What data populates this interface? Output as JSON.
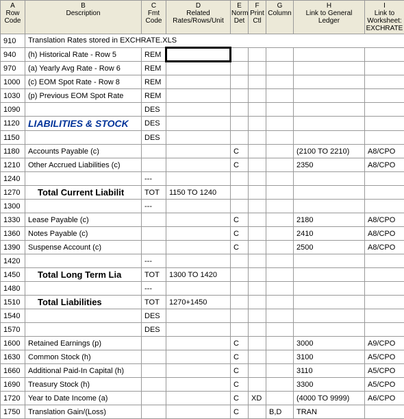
{
  "columns": {
    "a": "A\nRow Code",
    "b": "B\nDescription",
    "c": "C\nFmt Code",
    "d": "D\nRelated Rates/Rows/Unit",
    "e": "E\nNorm Det",
    "f": "F\nPrint Ctl",
    "g": "G\nColumn",
    "h": "H\nLink to General Ledger",
    "i": "I\nLink to Worksheet: EXCHRATE"
  },
  "rows": [
    {
      "code": "910",
      "desc": "Translation Rates stored in EXCHRATE.XLS",
      "descSpan": true
    },
    {
      "code": "940",
      "desc": "(h) Historical Rate - Row 5",
      "fmt": "REM",
      "selectD": true
    },
    {
      "code": "970",
      "desc": "(a)  Yearly Avg Rate - Row 6",
      "fmt": "REM"
    },
    {
      "code": "1000",
      "desc": "(c)  EOM Spot Rate - Row 8",
      "fmt": "REM"
    },
    {
      "code": "1030",
      "desc": "(p)  Previous EOM Spot Rate",
      "fmt": "REM"
    },
    {
      "code": "1090",
      "desc": "",
      "fmt": "DES"
    },
    {
      "code": "1120",
      "desc": "LIABILITIES & STOCK",
      "fmt": "DES",
      "style": "section-header"
    },
    {
      "code": "1150",
      "desc": "",
      "fmt": "DES"
    },
    {
      "code": "1180",
      "desc": "Accounts Payable (c)",
      "fmt": "",
      "e": "C",
      "h": "(2100 TO 2210)",
      "i": "A8/CPO"
    },
    {
      "code": "1210",
      "desc": "Other Accrued Liabilities (c)",
      "fmt": "",
      "e": "C",
      "h": "2350",
      "i": "A8/CPO"
    },
    {
      "code": "1240",
      "desc": "",
      "fmt": "---"
    },
    {
      "code": "1270",
      "desc": "Total Current Liabilit",
      "fmt": "TOT",
      "d": "1150 TO 1240",
      "style": "total-row"
    },
    {
      "code": "1300",
      "desc": "",
      "fmt": "---"
    },
    {
      "code": "1330",
      "desc": "Lease Payable (c)",
      "fmt": "",
      "e": "C",
      "h": "2180",
      "i": "A8/CPO"
    },
    {
      "code": "1360",
      "desc": "Notes Payable (c)",
      "fmt": "",
      "e": "C",
      "h": "2410",
      "i": "A8/CPO"
    },
    {
      "code": "1390",
      "desc": "Suspense Account (c)",
      "fmt": "",
      "e": "C",
      "h": "2500",
      "i": "A8/CPO"
    },
    {
      "code": "1420",
      "desc": "",
      "fmt": "---"
    },
    {
      "code": "1450",
      "desc": "Total Long Term Lia",
      "fmt": "TOT",
      "d": "1300 TO 1420",
      "style": "total-row"
    },
    {
      "code": "1480",
      "desc": "",
      "fmt": "---"
    },
    {
      "code": "1510",
      "desc": "Total Liabilities",
      "fmt": "TOT",
      "d": "1270+1450",
      "style": "total-row"
    },
    {
      "code": "1540",
      "desc": "",
      "fmt": "DES"
    },
    {
      "code": "1570",
      "desc": "",
      "fmt": "DES"
    },
    {
      "code": "1600",
      "desc": "Retained Earnings (p)",
      "fmt": "",
      "e": "C",
      "h": "3000",
      "i": "A9/CPO"
    },
    {
      "code": "1630",
      "desc": "Common Stock (h)",
      "fmt": "",
      "e": "C",
      "h": "3100",
      "i": "A5/CPO"
    },
    {
      "code": "1660",
      "desc": "Additional Paid-In Capital (h)",
      "fmt": "",
      "e": "C",
      "h": "3110",
      "i": "A5/CPO"
    },
    {
      "code": "1690",
      "desc": "Treasury Stock (h)",
      "fmt": "",
      "e": "C",
      "h": "3300",
      "i": "A5/CPO"
    },
    {
      "code": "1720",
      "desc": "Year to Date Income (a)",
      "fmt": "",
      "e": "C",
      "f": "XD",
      "h": "(4000 TO 9999)",
      "i": "A6/CPO"
    },
    {
      "code": "1750",
      "desc": "Translation Gain/(Loss)",
      "fmt": "",
      "e": "C",
      "g": "B,D",
      "h": "TRAN"
    }
  ]
}
